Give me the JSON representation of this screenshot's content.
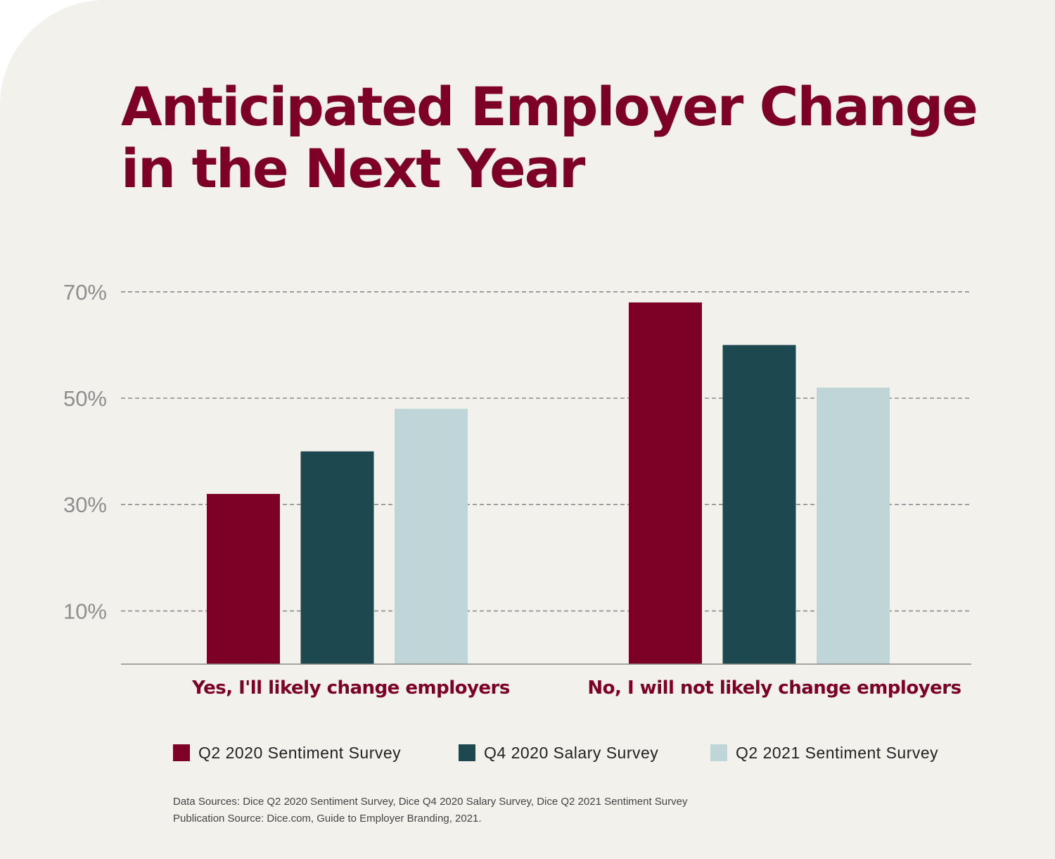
{
  "title": {
    "line1": "Anticipated Employer Change",
    "line2": "in the Next Year"
  },
  "chart_data": {
    "type": "bar",
    "title": "Anticipated Employer Change in the Next Year",
    "xlabel": "",
    "ylabel": "",
    "categories": [
      "Yes, I'll likely change employers",
      "No, I will not likely change employers"
    ],
    "series": [
      {
        "name": "Q2 2020 Sentiment Survey",
        "values": [
          32,
          68
        ],
        "color": "#7d0026"
      },
      {
        "name": "Q4 2020 Salary Survey",
        "values": [
          40,
          60
        ],
        "color": "#1e4850"
      },
      {
        "name": "Q2 2021 Sentiment Survey",
        "values": [
          48,
          52
        ],
        "color": "#bfd5d8"
      }
    ],
    "yticks": [
      10,
      30,
      50,
      70
    ],
    "ytick_labels": [
      "10%",
      "30%",
      "50%",
      "70%"
    ],
    "ylim": [
      0,
      72
    ],
    "grid": true,
    "gridline_style": "dashed",
    "legend_position": "bottom"
  },
  "sources": {
    "line1": "Data Sources: Dice Q2 2020 Sentiment Survey, Dice Q4 2020 Salary Survey, Dice Q2 2021 Sentiment Survey",
    "line2": "Publication Source: Dice.com, Guide to Employer Branding, 2021."
  },
  "colors": {
    "background": "#f2f1ec",
    "accent": "#7d0026",
    "axis_label": "#8e8e8e",
    "gridline": "#8c8c8c"
  }
}
